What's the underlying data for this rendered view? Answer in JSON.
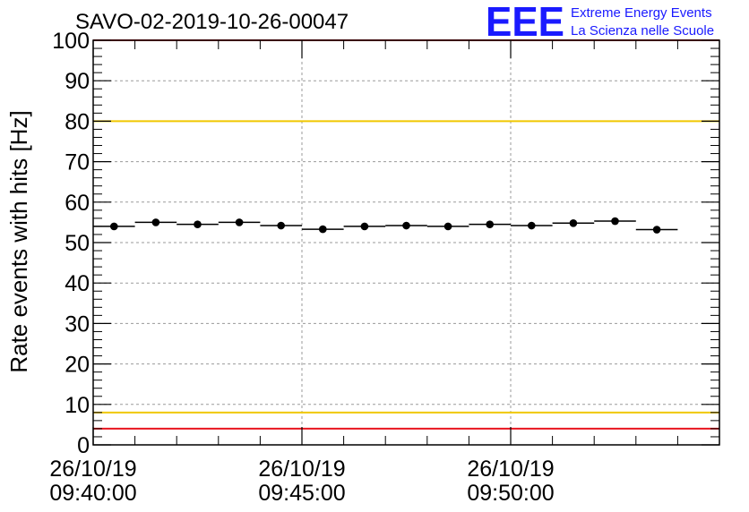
{
  "chart_data": {
    "type": "scatter",
    "title": "SAVO-02-2019-10-26-00047",
    "xlabel": "",
    "ylabel": "Rate events with hits [Hz]",
    "ylim": [
      0,
      100
    ],
    "xlim_seconds": [
      0,
      900
    ],
    "y_ticks": [
      "0",
      "10",
      "20",
      "30",
      "40",
      "50",
      "60",
      "70",
      "80",
      "90",
      "100"
    ],
    "x_ticks": [
      {
        "date": "26/10/19",
        "time": "09:40:00",
        "t": 0
      },
      {
        "date": "26/10/19",
        "time": "09:45:00",
        "t": 300
      },
      {
        "date": "26/10/19",
        "time": "09:50:00",
        "t": 600
      }
    ],
    "grid": true,
    "series": [
      {
        "name": "rate",
        "bin_width_seconds": 60,
        "x": [
          30,
          90,
          150,
          210,
          270,
          330,
          390,
          450,
          510,
          570,
          630,
          690,
          750,
          810
        ],
        "values": [
          54.0,
          55.0,
          54.5,
          55.0,
          54.2,
          53.3,
          54.0,
          54.2,
          54.0,
          54.5,
          54.2,
          54.8,
          55.3,
          53.2
        ]
      }
    ],
    "reference_lines": [
      {
        "y": 4,
        "color": "#e8141e"
      },
      {
        "y": 8,
        "color": "#f0c800"
      },
      {
        "y": 80,
        "color": "#f0c800"
      },
      {
        "y": 100,
        "color": "#e8141e"
      }
    ]
  },
  "logo": {
    "mark": "EEE",
    "line1": "Extreme Energy Events",
    "line2": "La Scienza nelle Scuole",
    "color": "#1a1aff"
  }
}
